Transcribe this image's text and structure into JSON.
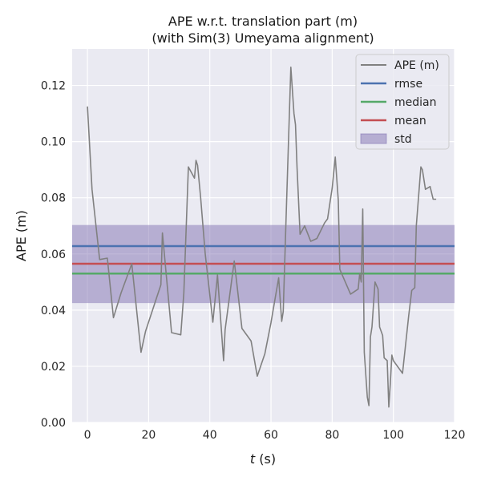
{
  "chart_data": {
    "type": "line",
    "title": "APE w.r.t. translation part (m)",
    "subtitle": "(with Sim(3) Umeyama alignment)",
    "xlabel_italic": "t",
    "xlabel_rest": " (s)",
    "ylabel": "APE (m)",
    "xlim": [
      -5,
      120
    ],
    "ylim": [
      0,
      0.133
    ],
    "xticks": [
      0,
      20,
      40,
      60,
      80,
      100,
      120
    ],
    "xtick_labels": [
      "0",
      "20",
      "40",
      "60",
      "80",
      "100",
      "120"
    ],
    "yticks": [
      0,
      0.02,
      0.04,
      0.06,
      0.08,
      0.1,
      0.12
    ],
    "ytick_labels": [
      "0.00",
      "0.02",
      "0.04",
      "0.06",
      "0.08",
      "0.10",
      "0.12"
    ],
    "grid": true,
    "legend_position": "top-right",
    "legend": [
      {
        "label": "APE (m)",
        "kind": "line",
        "color": "#808080"
      },
      {
        "label": "rmse",
        "kind": "line",
        "color": "#4c72b0"
      },
      {
        "label": "median",
        "kind": "line",
        "color": "#55a868"
      },
      {
        "label": "mean",
        "kind": "line",
        "color": "#c44e52"
      },
      {
        "label": "std",
        "kind": "patch",
        "color": "#8172b2"
      }
    ],
    "stats": {
      "rmse": 0.0628,
      "median": 0.053,
      "mean": 0.0565,
      "std_low": 0.0425,
      "std_high": 0.0703
    },
    "series": [
      {
        "name": "APE (m)",
        "color": "#808080",
        "x": [
          0.0,
          1.5,
          4.0,
          6.5,
          8.5,
          11.0,
          14.5,
          17.5,
          19.0,
          22.5,
          24.0,
          24.5,
          27.5,
          30.5,
          31.5,
          33.0,
          35.0,
          35.5,
          36.0,
          37.0,
          38.5,
          40.0,
          41.0,
          42.5,
          44.5,
          45.0,
          48.0,
          50.5,
          53.5,
          55.5,
          58.0,
          60.0,
          62.5,
          63.5,
          64.0,
          65.0,
          66.5,
          67.5,
          68.0,
          68.5,
          69.5,
          71.0,
          73.0,
          75.0,
          77.5,
          78.5,
          79.5,
          80.0,
          81.0,
          82.0,
          82.5,
          83.5,
          86.0,
          88.5,
          89.0,
          89.5,
          90.0,
          90.5,
          91.5,
          92.0,
          92.5,
          93.0,
          94.0,
          95.0,
          95.5,
          96.0,
          96.5,
          97.0,
          98.0,
          98.5,
          99.0,
          99.5,
          100.0,
          103.0,
          105.0,
          106.0,
          107.0,
          107.5,
          109.0,
          109.5,
          110.5,
          112.0,
          113.0,
          114.0
        ],
        "values": [
          0.1125,
          0.083,
          0.058,
          0.0585,
          0.0373,
          0.0462,
          0.0565,
          0.025,
          0.0325,
          0.044,
          0.049,
          0.0675,
          0.032,
          0.0312,
          0.046,
          0.091,
          0.087,
          0.0933,
          0.0915,
          0.08,
          0.06,
          0.0455,
          0.0357,
          0.0525,
          0.022,
          0.033,
          0.0575,
          0.0335,
          0.029,
          0.0165,
          0.0245,
          0.0355,
          0.0515,
          0.036,
          0.0395,
          0.075,
          0.1265,
          0.11,
          0.106,
          0.091,
          0.067,
          0.07,
          0.0645,
          0.0655,
          0.071,
          0.0725,
          0.08,
          0.0835,
          0.0945,
          0.079,
          0.0545,
          0.052,
          0.0457,
          0.0475,
          0.053,
          0.05,
          0.076,
          0.025,
          0.009,
          0.006,
          0.0305,
          0.034,
          0.05,
          0.0475,
          0.034,
          0.0325,
          0.031,
          0.023,
          0.022,
          0.0055,
          0.014,
          0.024,
          0.022,
          0.0175,
          0.038,
          0.047,
          0.048,
          0.07,
          0.091,
          0.09,
          0.083,
          0.084,
          0.0795,
          0.0795
        ]
      }
    ]
  }
}
